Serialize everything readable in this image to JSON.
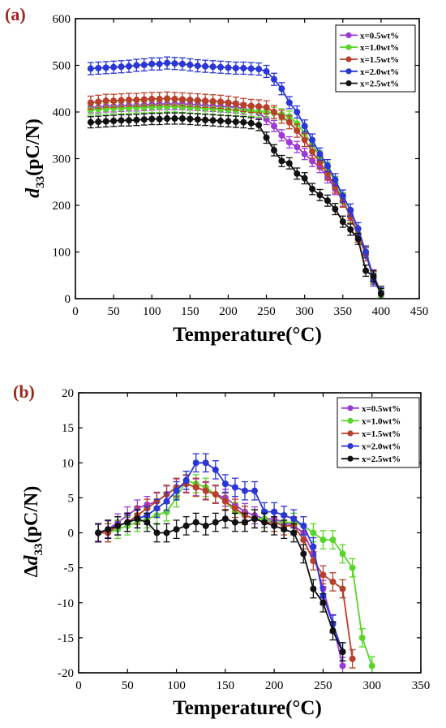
{
  "chart_data": [
    {
      "type": "line",
      "panel_label": "(a)",
      "xlabel": "Temperature(°C)",
      "ylabel_main": "d",
      "ylabel_sub": "33",
      "ylabel_rest": "(pC/N)",
      "xlim": [
        0,
        450
      ],
      "ylim": [
        0,
        600
      ],
      "xticks": [
        0,
        50,
        100,
        150,
        200,
        250,
        300,
        350,
        400,
        450
      ],
      "yticks": [
        0,
        100,
        200,
        300,
        400,
        500,
        600
      ],
      "legend_position": "top-right",
      "series": [
        {
          "name": "x=0.5wt%",
          "color": "#9c3ad6",
          "x": [
            20,
            30,
            40,
            50,
            60,
            70,
            80,
            90,
            100,
            110,
            120,
            130,
            140,
            150,
            160,
            170,
            180,
            190,
            200,
            210,
            220,
            230,
            240,
            250,
            260,
            270,
            280,
            290,
            300,
            310,
            320,
            330,
            340,
            350,
            360,
            370,
            380,
            390,
            400
          ],
          "y": [
            410,
            410,
            412,
            412,
            413,
            414,
            414,
            415,
            416,
            417,
            417,
            417,
            417,
            416,
            415,
            414,
            413,
            412,
            411,
            410,
            407,
            403,
            398,
            385,
            370,
            350,
            335,
            325,
            310,
            295,
            282,
            260,
            235,
            210,
            180,
            140,
            100,
            50,
            15
          ],
          "err": 12
        },
        {
          "name": "x=1.0wt%",
          "color": "#5ad42a",
          "x": [
            20,
            30,
            40,
            50,
            60,
            70,
            80,
            90,
            100,
            110,
            120,
            130,
            140,
            150,
            160,
            170,
            180,
            190,
            200,
            210,
            220,
            230,
            240,
            250,
            260,
            270,
            280,
            290,
            300,
            310,
            320,
            330,
            340,
            350,
            360,
            370,
            380,
            390,
            400
          ],
          "y": [
            405,
            406,
            407,
            408,
            408,
            409,
            410,
            410,
            411,
            411,
            412,
            412,
            411,
            410,
            409,
            408,
            407,
            406,
            405,
            404,
            403,
            402,
            401,
            400,
            398,
            395,
            390,
            375,
            355,
            330,
            305,
            280,
            250,
            215,
            175,
            140,
            100,
            45,
            15
          ],
          "err": 12
        },
        {
          "name": "x=1.5wt%",
          "color": "#b8402a",
          "x": [
            20,
            30,
            40,
            50,
            60,
            70,
            80,
            90,
            100,
            110,
            120,
            130,
            140,
            150,
            160,
            170,
            180,
            190,
            200,
            210,
            220,
            230,
            240,
            250,
            260,
            270,
            280,
            290,
            300,
            310,
            320,
            330,
            340,
            350,
            360,
            370,
            380,
            390,
            400
          ],
          "y": [
            420,
            422,
            424,
            424,
            425,
            426,
            426,
            427,
            428,
            428,
            429,
            428,
            427,
            426,
            425,
            424,
            423,
            422,
            420,
            418,
            415,
            413,
            412,
            410,
            400,
            390,
            378,
            360,
            340,
            315,
            292,
            268,
            240,
            210,
            175,
            135,
            95,
            45,
            12
          ],
          "err": 14
        },
        {
          "name": "x=2.0wt%",
          "color": "#2a36d6",
          "x": [
            20,
            30,
            40,
            50,
            60,
            70,
            80,
            90,
            100,
            110,
            120,
            130,
            140,
            150,
            160,
            170,
            180,
            190,
            200,
            210,
            220,
            230,
            240,
            250,
            260,
            270,
            280,
            290,
            300,
            310,
            320,
            330,
            340,
            350,
            360,
            370,
            380,
            390,
            400
          ],
          "y": [
            493,
            494,
            495,
            496,
            497,
            498,
            500,
            501,
            503,
            503,
            505,
            504,
            503,
            501,
            499,
            498,
            497,
            496,
            495,
            494,
            494,
            493,
            492,
            487,
            470,
            450,
            420,
            400,
            370,
            340,
            310,
            285,
            255,
            220,
            190,
            150,
            100,
            40,
            12
          ],
          "err": 13
        },
        {
          "name": "x=2.5wt%",
          "color": "#111111",
          "x": [
            20,
            30,
            40,
            50,
            60,
            70,
            80,
            90,
            100,
            110,
            120,
            130,
            140,
            150,
            160,
            170,
            180,
            190,
            200,
            210,
            220,
            230,
            240,
            250,
            260,
            270,
            280,
            290,
            300,
            310,
            320,
            330,
            340,
            350,
            360,
            370,
            380,
            390,
            400
          ],
          "y": [
            378,
            379,
            380,
            381,
            382,
            382,
            383,
            384,
            385,
            385,
            386,
            386,
            386,
            385,
            384,
            383,
            382,
            381,
            380,
            379,
            378,
            376,
            372,
            345,
            318,
            295,
            290,
            268,
            258,
            235,
            222,
            210,
            192,
            165,
            148,
            128,
            60,
            48,
            10
          ],
          "err": 12
        }
      ]
    },
    {
      "type": "line",
      "panel_label": "(b)",
      "xlabel": "Temperature(°C)",
      "ylabel_main": "Δd",
      "ylabel_sub": "33",
      "ylabel_rest": "(pC/N)",
      "xlim": [
        0,
        350
      ],
      "ylim": [
        -20,
        20
      ],
      "xticks": [
        0,
        50,
        100,
        150,
        200,
        250,
        300,
        350
      ],
      "yticks": [
        -20,
        -15,
        -10,
        -5,
        0,
        5,
        10,
        15,
        20
      ],
      "legend_position": "top-right",
      "series": [
        {
          "name": "x=0.5wt%",
          "color": "#9c3ad6",
          "x": [
            20,
            30,
            40,
            50,
            60,
            70,
            80,
            90,
            100,
            110,
            120,
            130,
            140,
            150,
            160,
            170,
            180,
            190,
            200,
            210,
            220,
            230,
            240,
            250,
            260,
            270
          ],
          "y": [
            0,
            0.5,
            1.5,
            2.5,
            3.5,
            4,
            4.5,
            5.5,
            6.5,
            7,
            6.5,
            6,
            5.5,
            5,
            4,
            3,
            2.5,
            2,
            2,
            1.5,
            1,
            0,
            -3,
            -8,
            -13,
            -19
          ],
          "err": 1.2
        },
        {
          "name": "x=1.0wt%",
          "color": "#5ad42a",
          "x": [
            20,
            30,
            40,
            50,
            60,
            70,
            80,
            90,
            100,
            110,
            120,
            130,
            140,
            150,
            160,
            170,
            180,
            190,
            200,
            210,
            220,
            230,
            240,
            250,
            260,
            270,
            280,
            290,
            300
          ],
          "y": [
            0,
            0,
            0.5,
            1,
            1.5,
            2,
            2.5,
            3,
            5,
            7.5,
            7,
            6.5,
            5.5,
            4.5,
            3,
            2.5,
            2,
            2,
            1.5,
            1.5,
            1.5,
            1,
            0,
            -1,
            -1,
            -3,
            -5,
            -15,
            -19
          ],
          "err": 1.3
        },
        {
          "name": "x=1.5wt%",
          "color": "#b8402a",
          "x": [
            20,
            30,
            40,
            50,
            60,
            70,
            80,
            90,
            100,
            110,
            120,
            130,
            140,
            150,
            160,
            170,
            180,
            190,
            200,
            210,
            220,
            230,
            240,
            250,
            260,
            270,
            280
          ],
          "y": [
            0,
            0,
            1,
            1.5,
            2.5,
            3.5,
            4.5,
            5.5,
            6.5,
            7,
            6.5,
            6,
            5.5,
            4.5,
            3.5,
            2.5,
            2,
            1.5,
            1.5,
            1,
            1,
            -1,
            -4,
            -6,
            -7,
            -8,
            -18
          ],
          "err": 1.3
        },
        {
          "name": "x=2.0wt%",
          "color": "#2a36d6",
          "x": [
            20,
            30,
            40,
            50,
            60,
            70,
            80,
            90,
            100,
            110,
            120,
            130,
            140,
            150,
            160,
            170,
            180,
            190,
            200,
            210,
            220,
            230,
            240,
            250,
            260,
            270
          ],
          "y": [
            0,
            0.5,
            1,
            1.5,
            2,
            2.5,
            3.5,
            4.5,
            6,
            7.5,
            10,
            10,
            9,
            7,
            6.5,
            6,
            6,
            3,
            3,
            2.5,
            2,
            1,
            -2,
            -9,
            -13,
            -17
          ],
          "err": 1.3
        },
        {
          "name": "x=2.5wt%",
          "color": "#111111",
          "x": [
            20,
            30,
            40,
            50,
            60,
            70,
            80,
            90,
            100,
            110,
            120,
            130,
            140,
            150,
            160,
            170,
            180,
            190,
            200,
            210,
            220,
            230,
            240,
            250,
            260,
            270
          ],
          "y": [
            0,
            0.5,
            1,
            1.5,
            2,
            1.5,
            0,
            0,
            0.5,
            1,
            1.5,
            1,
            1.5,
            2,
            1.5,
            1.5,
            2,
            1.5,
            1,
            0.5,
            0,
            -3,
            -8,
            -10,
            -14,
            -17
          ],
          "err": 1.3
        }
      ]
    }
  ]
}
